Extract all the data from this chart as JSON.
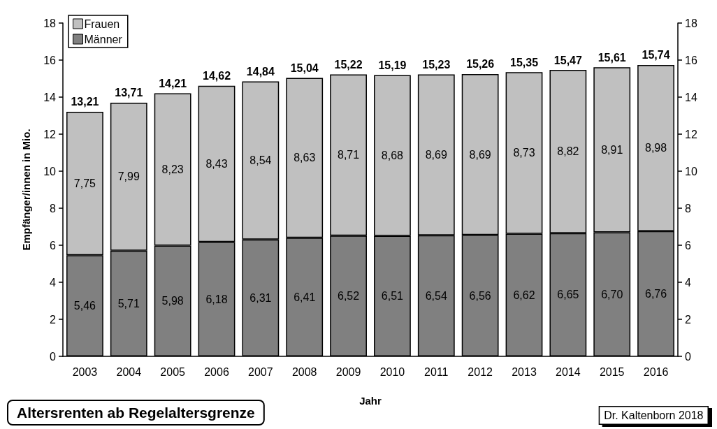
{
  "chart_data": {
    "type": "bar",
    "stacked": true,
    "xlabel": "Jahr",
    "ylabel": "Empfänger/innen in Mio.",
    "categories": [
      "2003",
      "2004",
      "2005",
      "2006",
      "2007",
      "2008",
      "2009",
      "2010",
      "2011",
      "2012",
      "2013",
      "2014",
      "2015",
      "2016"
    ],
    "series": [
      {
        "name": "Männer",
        "color": "#808080",
        "values": [
          5.46,
          5.71,
          5.98,
          6.18,
          6.31,
          6.41,
          6.52,
          6.51,
          6.54,
          6.56,
          6.62,
          6.65,
          6.7,
          6.76
        ],
        "value_labels": [
          "5,46",
          "5,71",
          "5,98",
          "6,18",
          "6,31",
          "6,41",
          "6,52",
          "6,51",
          "6,54",
          "6,56",
          "6,62",
          "6,65",
          "6,70",
          "6,76"
        ]
      },
      {
        "name": "Frauen",
        "color": "#c0c0c0",
        "values": [
          7.75,
          7.99,
          8.23,
          8.43,
          8.54,
          8.63,
          8.71,
          8.68,
          8.69,
          8.69,
          8.73,
          8.82,
          8.91,
          8.98
        ],
        "value_labels": [
          "7,75",
          "7,99",
          "8,23",
          "8,43",
          "8,54",
          "8,63",
          "8,71",
          "8,68",
          "8,69",
          "8,69",
          "8,73",
          "8,82",
          "8,91",
          "8,98"
        ]
      }
    ],
    "totals": [
      "13,21",
      "13,71",
      "14,21",
      "14,62",
      "14,84",
      "15,04",
      "15,22",
      "15,19",
      "15,23",
      "15,26",
      "15,35",
      "15,47",
      "15,61",
      "15,74"
    ],
    "ylim": [
      0,
      18
    ],
    "yticks": [
      0,
      2,
      4,
      6,
      8,
      10,
      12,
      14,
      16,
      18
    ],
    "y2lim": [
      0,
      18
    ],
    "y2ticks": [
      0,
      2,
      4,
      6,
      8,
      10,
      12,
      14,
      16,
      18
    ],
    "legend": "top left",
    "grid": false,
    "annotations": [
      "Altersrenten ab Regelaltersgrenze",
      "Dr. Kaltenborn 2018"
    ]
  }
}
